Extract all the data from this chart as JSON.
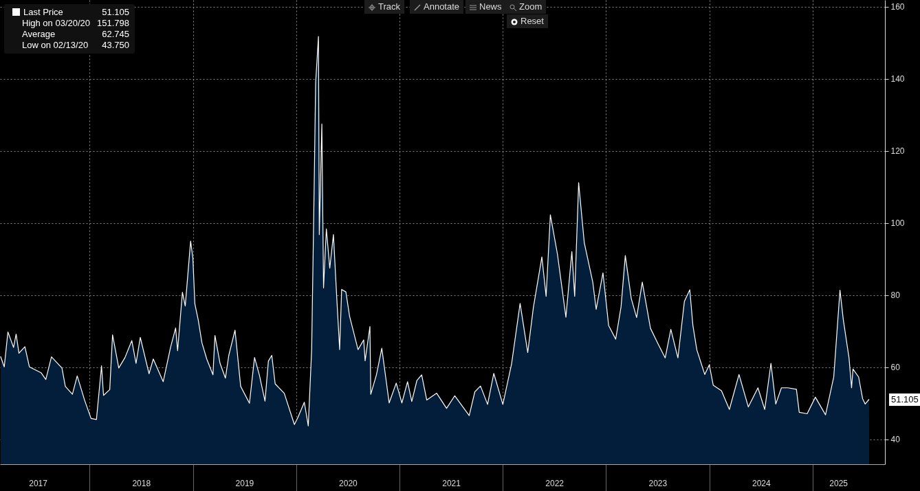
{
  "chart_data": {
    "type": "area",
    "x": [
      "2017-02-20",
      "2017-03-05",
      "2017-03-18",
      "2017-04-07",
      "2017-04-16",
      "2017-04-26",
      "2017-05-17",
      "2017-06-02",
      "2017-07-13",
      "2017-07-30",
      "2017-08-19",
      "2017-09-25",
      "2017-10-07",
      "2017-11-01",
      "2017-11-18",
      "2017-12-14",
      "2018-01-06",
      "2018-01-25",
      "2018-02-12",
      "2018-02-19",
      "2018-03-13",
      "2018-03-23",
      "2018-04-14",
      "2018-05-06",
      "2018-05-30",
      "2018-06-14",
      "2018-06-29",
      "2018-07-30",
      "2018-08-14",
      "2018-09-18",
      "2018-10-14",
      "2018-11-01",
      "2018-11-08",
      "2018-11-25",
      "2018-12-05",
      "2018-12-24",
      "2019-01-01",
      "2019-01-08",
      "2019-01-20",
      "2019-02-02",
      "2019-02-19",
      "2019-03-13",
      "2019-03-20",
      "2019-04-07",
      "2019-04-26",
      "2019-05-08",
      "2019-05-30",
      "2019-06-19",
      "2019-07-20",
      "2019-08-07",
      "2019-08-24",
      "2019-09-13",
      "2019-09-25",
      "2019-10-07",
      "2019-10-19",
      "2019-11-20",
      "2019-12-26",
      "2020-01-08",
      "2020-01-30",
      "2020-02-13",
      "2020-02-25",
      "2020-03-05",
      "2020-03-10",
      "2020-03-20",
      "2020-03-23",
      "2020-04-01",
      "2020-04-07",
      "2020-04-17",
      "2020-04-29",
      "2020-05-12",
      "2020-05-24",
      "2020-06-03",
      "2020-06-10",
      "2020-06-25",
      "2020-07-08",
      "2020-08-07",
      "2020-08-27",
      "2020-09-01",
      "2020-09-18",
      "2020-09-21",
      "2020-10-11",
      "2020-10-30",
      "2020-11-25",
      "2020-12-20",
      "2021-01-09",
      "2021-01-29",
      "2021-02-13",
      "2021-03-03",
      "2021-03-20",
      "2021-04-07",
      "2021-05-12",
      "2021-06-16",
      "2021-07-15",
      "2021-09-04",
      "2021-09-24",
      "2021-10-14",
      "2021-11-08",
      "2021-11-30",
      "2022-01-01",
      "2022-02-01",
      "2022-03-03",
      "2022-03-30",
      "2022-04-19",
      "2022-05-19",
      "2022-06-03",
      "2022-06-18",
      "2022-07-13",
      "2022-08-12",
      "2022-09-02",
      "2022-09-12",
      "2022-09-26",
      "2022-10-16",
      "2022-11-15",
      "2022-11-27",
      "2022-12-21",
      "2023-01-10",
      "2023-02-04",
      "2023-02-23",
      "2023-03-10",
      "2023-03-31",
      "2023-04-19",
      "2023-05-09",
      "2023-06-07",
      "2023-07-05",
      "2023-07-29",
      "2023-08-18",
      "2023-09-12",
      "2023-10-05",
      "2023-10-24",
      "2023-11-04",
      "2023-11-18",
      "2023-12-16",
      "2024-01-01",
      "2024-01-15",
      "2024-02-13",
      "2024-03-12",
      "2024-04-15",
      "2024-05-18",
      "2024-06-21",
      "2024-07-15",
      "2024-08-06",
      "2024-08-23",
      "2024-09-12",
      "2024-10-05",
      "2024-11-04",
      "2024-11-14",
      "2024-12-12",
      "2025-01-10",
      "2025-02-15",
      "2025-03-16",
      "2025-04-07",
      "2025-04-19",
      "2025-05-09",
      "2025-05-18",
      "2025-05-23",
      "2025-06-12",
      "2025-06-26",
      "2025-07-05",
      "2025-07-19"
    ],
    "series": [
      {
        "name": "Last Price",
        "color": "#ffffff",
        "values": [
          63.0,
          60.1,
          69.8,
          65.5,
          69.2,
          63.9,
          65.7,
          60.1,
          58.5,
          56.6,
          62.9,
          59.8,
          54.7,
          52.5,
          57.6,
          50.9,
          45.8,
          45.5,
          60.4,
          52.2,
          53.8,
          69.0,
          59.8,
          62.7,
          67.4,
          61.1,
          68.3,
          58.2,
          62.3,
          56.0,
          65.5,
          70.9,
          64.6,
          80.8,
          77.0,
          95.0,
          90.3,
          77.6,
          73.1,
          66.8,
          62.3,
          57.9,
          68.8,
          61.1,
          57.0,
          63.3,
          70.3,
          54.7,
          50.0,
          62.7,
          57.9,
          50.6,
          61.7,
          63.3,
          55.4,
          52.8,
          44.1,
          46.2,
          50.3,
          43.75,
          64.9,
          110.8,
          138.8,
          151.798,
          96.8,
          127.5,
          82.0,
          98.4,
          87.5,
          96.8,
          78.9,
          64.9,
          81.6,
          80.9,
          74.2,
          64.9,
          67.6,
          61.8,
          71.3,
          52.5,
          57.9,
          65.3,
          50.1,
          55.6,
          50.1,
          56.0,
          50.5,
          56.3,
          57.9,
          50.9,
          52.8,
          48.6,
          52.1,
          46.6,
          53.2,
          54.8,
          49.7,
          58.3,
          49.7,
          61.0,
          77.7,
          64.1,
          76.6,
          90.6,
          79.7,
          102.3,
          91.4,
          73.9,
          92.1,
          79.7,
          111.2,
          94.5,
          83.6,
          76.1,
          86.2,
          71.6,
          67.8,
          76.8,
          91.0,
          79.1,
          73.8,
          83.6,
          70.8,
          66.3,
          62.6,
          70.5,
          62.6,
          78.3,
          81.5,
          71.6,
          64.8,
          58.0,
          60.7,
          55.0,
          53.5,
          48.3,
          58.0,
          49.0,
          54.3,
          48.3,
          61.1,
          49.8,
          54.3,
          54.3,
          53.9,
          47.5,
          47.1,
          51.7,
          46.8,
          57.3,
          81.4,
          73.1,
          62.6,
          54.3,
          59.5,
          57.3,
          51.3,
          49.8,
          51.105
        ]
      }
    ],
    "xlim": [
      "2017-02-18",
      "2025-09-13"
    ],
    "xticks": [
      {
        "value": "2017-07-02",
        "label": "2017"
      },
      {
        "value": "2018-01-01",
        "label": null
      },
      {
        "value": "2018-07-02",
        "label": "2018"
      },
      {
        "value": "2019-01-01",
        "label": null
      },
      {
        "value": "2019-07-02",
        "label": "2019"
      },
      {
        "value": "2020-01-01",
        "label": null
      },
      {
        "value": "2020-07-02",
        "label": "2020"
      },
      {
        "value": "2021-01-01",
        "label": null
      },
      {
        "value": "2021-07-02",
        "label": "2021"
      },
      {
        "value": "2022-01-01",
        "label": null
      },
      {
        "value": "2022-07-02",
        "label": "2022"
      },
      {
        "value": "2023-01-01",
        "label": null
      },
      {
        "value": "2023-07-02",
        "label": "2023"
      },
      {
        "value": "2024-01-01",
        "label": null
      },
      {
        "value": "2024-07-02",
        "label": "2024"
      },
      {
        "value": "2025-01-01",
        "label": null
      },
      {
        "value": "2025-04-01",
        "label": "2025"
      }
    ],
    "ylim": [
      33.1,
      161.9
    ],
    "yticks": [
      40,
      60,
      80,
      100,
      120,
      140,
      160
    ],
    "grid": true,
    "legend": "top left",
    "annotations": [
      {
        "text": "51.105",
        "x": "2025-07-19",
        "y": 51.105
      },
      "High on 03/20/20 151.798",
      "Average 62.745",
      "Low on 02/13/20 43.750",
      "Track",
      "Annotate",
      "News",
      "Zoom",
      "Reset"
    ]
  }
}
